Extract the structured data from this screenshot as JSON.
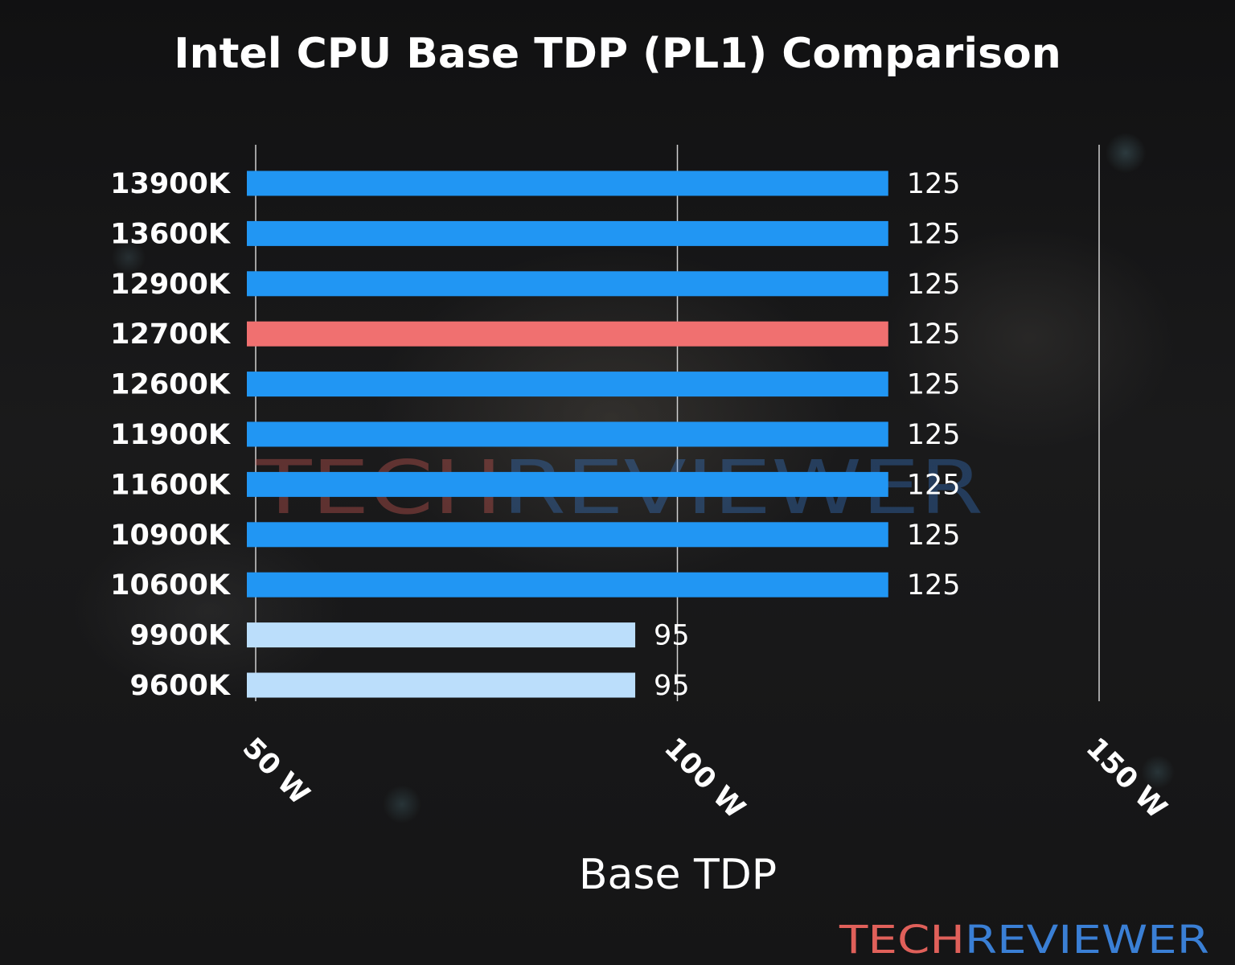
{
  "chart_data": {
    "type": "bar",
    "orientation": "horizontal",
    "title": "Intel CPU Base TDP (PL1) Comparison",
    "xlabel": "Base TDP",
    "ylabel": "",
    "xlim": [
      50,
      150
    ],
    "xticks": [
      50,
      100,
      150
    ],
    "tick_labels": [
      "50 W",
      "100 W",
      "150 W"
    ],
    "grid": "vertical",
    "categories": [
      "13900K",
      "13600K",
      "12900K",
      "12700K",
      "12600K",
      "11900K",
      "11600K",
      "10900K",
      "10600K",
      "9900K",
      "9600K"
    ],
    "values": [
      125,
      125,
      125,
      125,
      125,
      125,
      125,
      125,
      125,
      95,
      95
    ],
    "value_labels": [
      "125",
      "125",
      "125",
      "125",
      "125",
      "125",
      "125",
      "125",
      "125",
      "95",
      "95"
    ],
    "bar_colors": [
      "#2196f3",
      "#2196f3",
      "#2196f3",
      "#f07070",
      "#2196f3",
      "#2196f3",
      "#2196f3",
      "#2196f3",
      "#2196f3",
      "#bbdefb",
      "#bbdefb"
    ]
  },
  "branding": {
    "logo_part1": "TECH",
    "logo_part2": "REVIEWER",
    "logo_color1": "#e0605a",
    "logo_color2": "#3a7fd5"
  }
}
